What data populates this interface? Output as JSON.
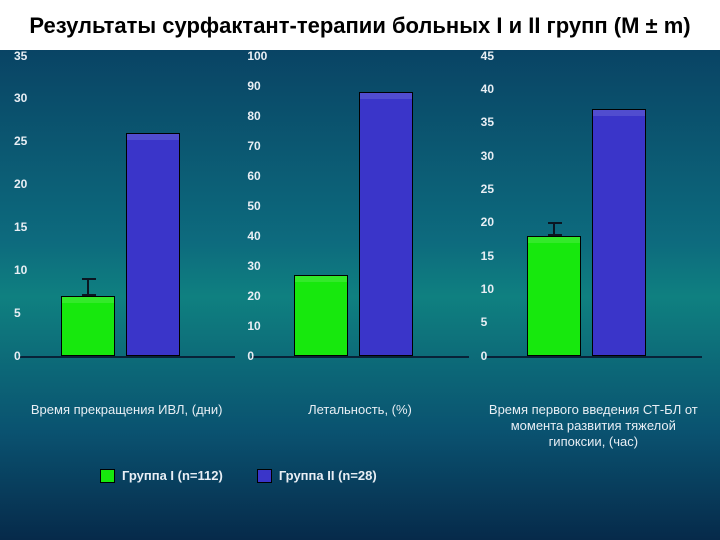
{
  "title": "Результаты сурфактант-терапии больных I и II групп (М ± m)",
  "background": {
    "top": "#083a5e",
    "mid": "#0f8080",
    "bottom": "#062a4a"
  },
  "colors": {
    "group1": "#17e80d",
    "group2": "#3a35c9",
    "axis_text": "#e8eef4"
  },
  "legend": [
    {
      "label": "Группа I (n=112)",
      "color": "#17e80d"
    },
    {
      "label": "Группа II (n=28)",
      "color": "#3a35c9"
    }
  ],
  "panels": [
    {
      "type": "bar",
      "xlabel": "Время прекращения ИВЛ, (дни)",
      "ylim": [
        0,
        35
      ],
      "ytick_step": 5,
      "bars": [
        {
          "value": 7,
          "err": 2,
          "color": "#17e80d"
        },
        {
          "value": 26,
          "err": 0,
          "color": "#3a35c9"
        }
      ]
    },
    {
      "type": "bar",
      "xlabel": "Летальность, (%)",
      "ylim": [
        0,
        100
      ],
      "ytick_step": 10,
      "bars": [
        {
          "value": 27,
          "err": 0,
          "color": "#17e80d"
        },
        {
          "value": 88,
          "err": 0,
          "color": "#3a35c9"
        }
      ]
    },
    {
      "type": "bar",
      "xlabel": "Время первого введения СТ-БЛ от момента развития тяжелой гипоксии, (час)",
      "ylim": [
        0,
        45
      ],
      "ytick_step": 5,
      "bars": [
        {
          "value": 18,
          "err": 2,
          "color": "#17e80d"
        },
        {
          "value": 37,
          "err": 0,
          "color": "#3a35c9"
        }
      ]
    }
  ]
}
